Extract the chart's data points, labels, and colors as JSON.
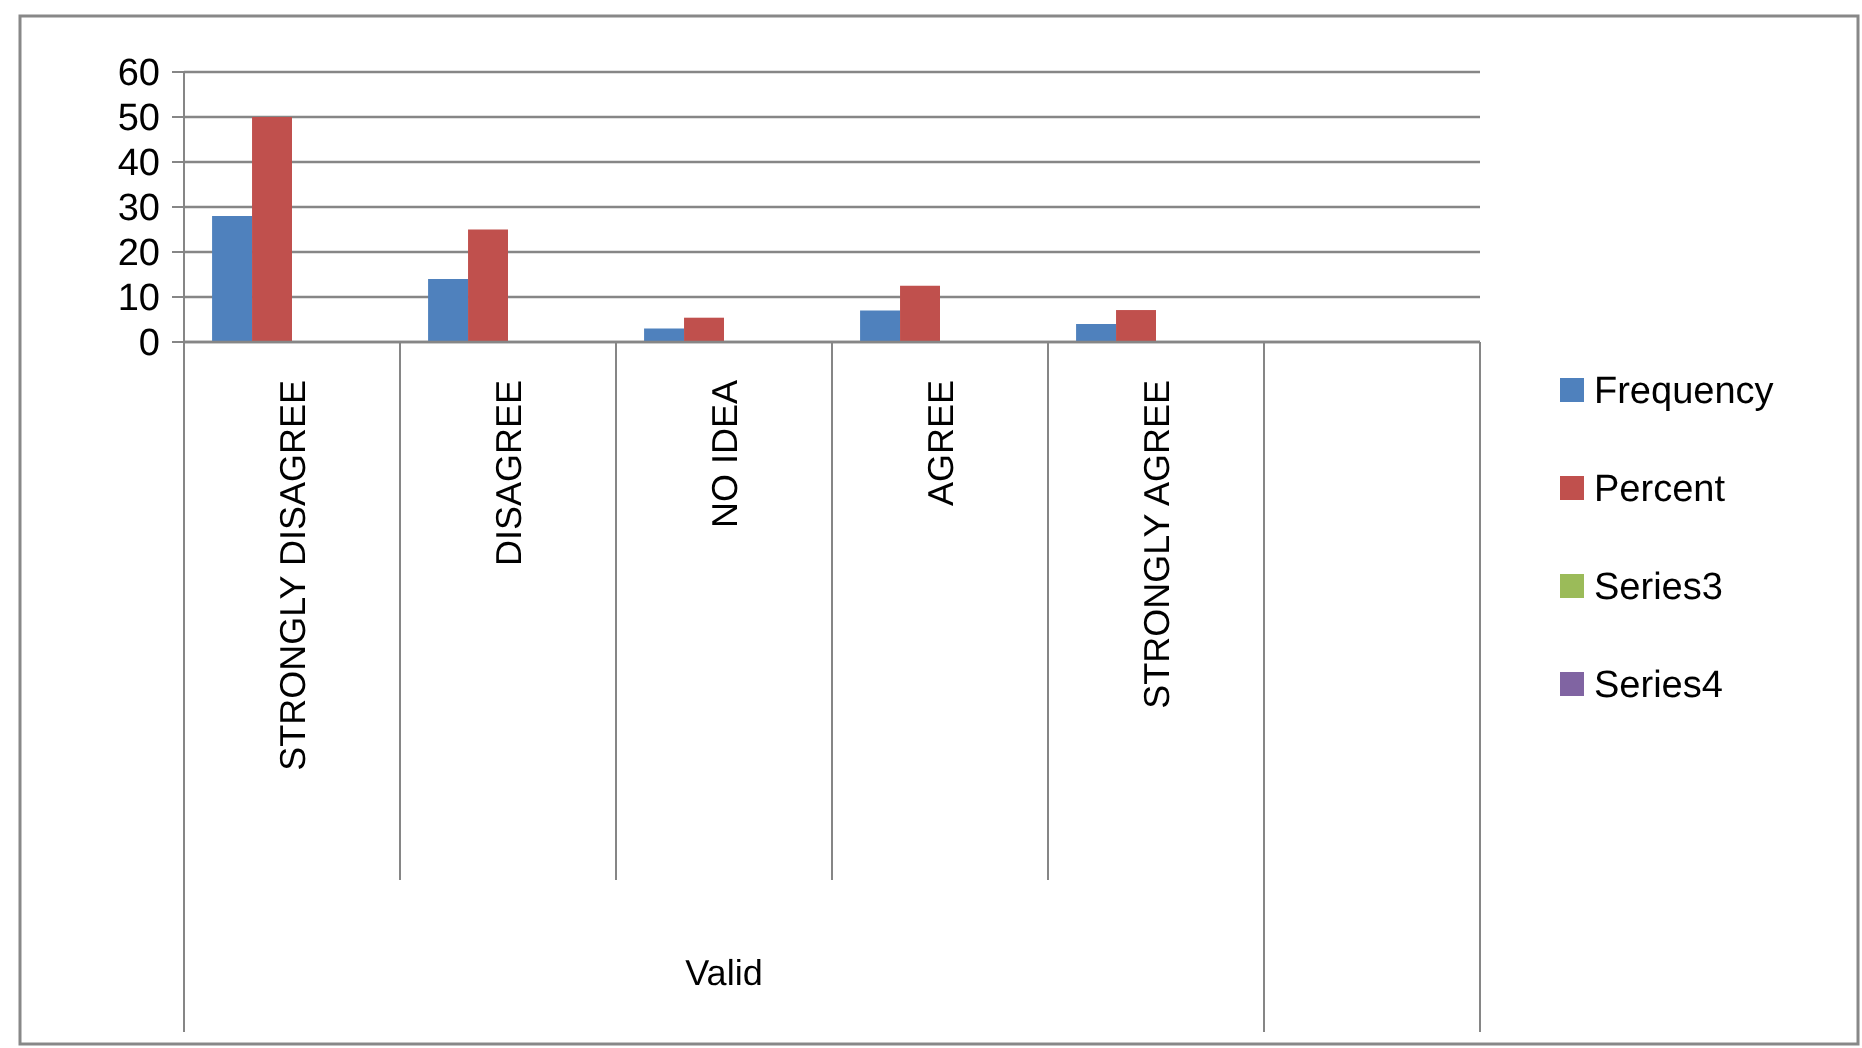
{
  "chart_data": {
    "type": "bar",
    "categories": [
      "STRONGLY DISAGREE",
      "DISAGREE",
      "NO IDEA",
      "AGREE",
      "STRONGLY AGREE",
      null
    ],
    "annotations": [
      "Valid"
    ],
    "series": [
      {
        "name": "Frequency",
        "color": "#4f81bd",
        "values": [
          28,
          14,
          3,
          7,
          4,
          null
        ]
      },
      {
        "name": "Percent",
        "color": "#c0504d",
        "values": [
          50,
          25,
          5.4,
          12.5,
          7.1,
          null
        ]
      },
      {
        "name": "Series3",
        "color": "#9bbb59",
        "values": [
          null,
          null,
          null,
          null,
          null,
          null
        ]
      },
      {
        "name": "Series4",
        "color": "#8064a2",
        "values": [
          null,
          null,
          null,
          null,
          null,
          null
        ]
      }
    ],
    "ylim": [
      0,
      60
    ],
    "yticks": [
      0,
      10,
      20,
      30,
      40,
      50,
      60
    ],
    "grid": "y",
    "legend": "right"
  }
}
